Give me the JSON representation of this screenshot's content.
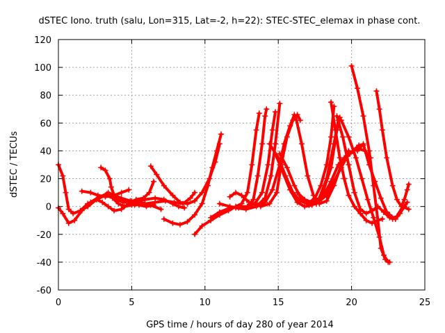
{
  "chart_data": {
    "type": "scatter",
    "title": "dSTEC Iono. truth (salu, Lon=315, Lat=-2, h=22): STEC-STEC_elemax in phase cont.",
    "xlabel": "GPS time / hours of day 280 of year 2014",
    "ylabel": "dSTEC  / TECUs",
    "xlim": [
      0,
      25
    ],
    "ylim": [
      -60,
      120
    ],
    "xticks": [
      0,
      5,
      10,
      15,
      20,
      25
    ],
    "yticks": [
      -60,
      -40,
      -20,
      0,
      20,
      40,
      60,
      80,
      100,
      120
    ],
    "grid": true,
    "marker": "plus",
    "color": "#ff0000",
    "series": [
      {
        "points": [
          [
            0.0,
            30
          ],
          [
            0.3,
            22
          ],
          [
            0.5,
            10
          ],
          [
            0.7,
            -2
          ],
          [
            1.0,
            -5
          ],
          [
            1.5,
            -3
          ],
          [
            2.0,
            0
          ],
          [
            2.6,
            5
          ],
          [
            3.2,
            8
          ],
          [
            3.8,
            6
          ],
          [
            4.4,
            3
          ],
          [
            5.0,
            4
          ],
          [
            5.6,
            3
          ],
          [
            6.3,
            1
          ],
          [
            7.0,
            -2
          ]
        ]
      },
      {
        "points": [
          [
            0.0,
            -1
          ],
          [
            0.3,
            -5
          ],
          [
            0.7,
            -12
          ],
          [
            1.1,
            -10
          ],
          [
            1.6,
            -3
          ],
          [
            2.2,
            3
          ],
          [
            2.8,
            7
          ],
          [
            3.3,
            9
          ],
          [
            3.7,
            6
          ],
          [
            4.1,
            2
          ],
          [
            4.5,
            0
          ],
          [
            5.0,
            1
          ],
          [
            5.5,
            2
          ],
          [
            6.0,
            1
          ]
        ]
      },
      {
        "points": [
          [
            1.5,
            -3
          ],
          [
            2.0,
            2
          ],
          [
            2.6,
            5
          ],
          [
            3.0,
            3
          ],
          [
            3.4,
            0
          ],
          [
            3.8,
            -3
          ],
          [
            4.3,
            -2
          ],
          [
            4.8,
            2
          ],
          [
            5.3,
            5
          ],
          [
            5.8,
            6
          ],
          [
            6.2,
            10
          ],
          [
            6.5,
            18
          ]
        ]
      },
      {
        "points": [
          [
            1.6,
            11
          ],
          [
            2.2,
            10
          ],
          [
            2.7,
            8
          ],
          [
            3.2,
            7
          ],
          [
            3.8,
            8
          ],
          [
            4.3,
            10
          ],
          [
            4.8,
            12
          ]
        ]
      },
      {
        "points": [
          [
            2.9,
            28
          ],
          [
            3.2,
            26
          ],
          [
            3.5,
            20
          ],
          [
            3.6,
            14
          ],
          [
            3.8,
            8
          ],
          [
            4.1,
            5
          ],
          [
            4.6,
            4
          ],
          [
            5.0,
            3
          ],
          [
            5.5,
            1
          ],
          [
            6.0,
            0
          ],
          [
            6.5,
            1
          ]
        ]
      },
      {
        "points": [
          [
            3.4,
            10
          ],
          [
            3.8,
            8
          ],
          [
            4.3,
            6
          ],
          [
            4.9,
            4
          ],
          [
            5.4,
            4
          ],
          [
            5.9,
            5
          ],
          [
            6.6,
            6
          ],
          [
            7.2,
            5
          ],
          [
            7.8,
            2
          ],
          [
            8.2,
            0
          ],
          [
            8.6,
            -1
          ]
        ]
      },
      {
        "points": [
          [
            6.3,
            29
          ],
          [
            6.7,
            23
          ],
          [
            7.2,
            15
          ],
          [
            7.8,
            8
          ],
          [
            8.3,
            3
          ],
          [
            8.8,
            2
          ],
          [
            9.3,
            4
          ],
          [
            9.8,
            10
          ],
          [
            10.3,
            20
          ],
          [
            10.7,
            32
          ],
          [
            11.0,
            45
          ]
        ]
      },
      {
        "points": [
          [
            7.2,
            -9
          ],
          [
            7.8,
            -12
          ],
          [
            8.3,
            -13
          ],
          [
            8.8,
            -11
          ],
          [
            9.3,
            -6
          ],
          [
            9.8,
            2
          ],
          [
            10.2,
            15
          ],
          [
            10.5,
            28
          ],
          [
            10.8,
            40
          ],
          [
            11.1,
            52
          ]
        ]
      },
      {
        "points": [
          [
            5.2,
            1
          ],
          [
            5.9,
            2
          ],
          [
            6.6,
            3
          ],
          [
            7.3,
            4
          ],
          [
            7.9,
            3
          ],
          [
            8.5,
            2
          ],
          [
            9.0,
            6
          ],
          [
            9.3,
            10
          ]
        ]
      },
      {
        "points": [
          [
            9.3,
            -20
          ],
          [
            9.8,
            -14
          ],
          [
            10.4,
            -10
          ],
          [
            11.0,
            -6
          ],
          [
            11.6,
            -3
          ],
          [
            12.1,
            0
          ],
          [
            12.5,
            2
          ],
          [
            12.9,
            10
          ],
          [
            13.2,
            30
          ],
          [
            13.5,
            55
          ],
          [
            13.7,
            67
          ]
        ]
      },
      {
        "points": [
          [
            10.4,
            -8
          ],
          [
            11.0,
            -4
          ],
          [
            11.7,
            -1
          ],
          [
            12.3,
            0
          ],
          [
            12.9,
            0
          ],
          [
            13.3,
            5
          ],
          [
            13.6,
            22
          ],
          [
            13.9,
            45
          ],
          [
            14.1,
            65
          ],
          [
            14.2,
            70
          ]
        ]
      },
      {
        "points": [
          [
            11.0,
            2
          ],
          [
            11.7,
            0
          ],
          [
            12.3,
            -1
          ],
          [
            12.9,
            0
          ],
          [
            13.4,
            2
          ],
          [
            13.9,
            10
          ],
          [
            14.3,
            30
          ],
          [
            14.6,
            55
          ],
          [
            14.8,
            68
          ]
        ]
      },
      {
        "points": [
          [
            11.7,
            7
          ],
          [
            12.1,
            10
          ],
          [
            12.5,
            8
          ],
          [
            13.0,
            3
          ],
          [
            13.6,
            1
          ],
          [
            14.1,
            6
          ],
          [
            14.5,
            22
          ],
          [
            14.8,
            45
          ],
          [
            15.1,
            74
          ]
        ]
      },
      {
        "points": [
          [
            12.1,
            -1
          ],
          [
            12.8,
            -2
          ],
          [
            13.5,
            0
          ],
          [
            14.1,
            3
          ],
          [
            14.6,
            12
          ],
          [
            15.1,
            30
          ],
          [
            15.4,
            45
          ],
          [
            15.8,
            58
          ],
          [
            16.1,
            66
          ]
        ]
      },
      {
        "points": [
          [
            13.8,
            0
          ],
          [
            14.4,
            2
          ],
          [
            14.9,
            10
          ],
          [
            15.2,
            30
          ],
          [
            15.6,
            50
          ],
          [
            16.0,
            62
          ],
          [
            16.3,
            66
          ],
          [
            16.5,
            62
          ]
        ]
      },
      {
        "points": [
          [
            14.4,
            45
          ],
          [
            15.0,
            35
          ],
          [
            15.5,
            22
          ],
          [
            16.0,
            10
          ],
          [
            16.5,
            4
          ],
          [
            17.0,
            2
          ],
          [
            17.5,
            6
          ],
          [
            17.9,
            15
          ],
          [
            18.3,
            30
          ],
          [
            18.6,
            50
          ],
          [
            18.8,
            72
          ]
        ]
      },
      {
        "points": [
          [
            14.8,
            38
          ],
          [
            15.3,
            25
          ],
          [
            15.8,
            12
          ],
          [
            16.3,
            3
          ],
          [
            16.8,
            0
          ],
          [
            17.3,
            1
          ],
          [
            17.8,
            6
          ],
          [
            18.3,
            20
          ],
          [
            18.8,
            45
          ],
          [
            19.1,
            62
          ]
        ]
      },
      {
        "points": [
          [
            15.1,
            38
          ],
          [
            15.6,
            28
          ],
          [
            16.1,
            15
          ],
          [
            16.6,
            5
          ],
          [
            17.1,
            1
          ],
          [
            17.6,
            2
          ],
          [
            18.1,
            12
          ],
          [
            18.6,
            28
          ],
          [
            19.0,
            55
          ],
          [
            19.2,
            64
          ]
        ]
      },
      {
        "points": [
          [
            16.2,
            64
          ],
          [
            16.6,
            45
          ],
          [
            17.0,
            22
          ],
          [
            17.4,
            8
          ],
          [
            17.8,
            2
          ],
          [
            18.3,
            4
          ],
          [
            18.8,
            15
          ],
          [
            19.3,
            30
          ],
          [
            19.8,
            40
          ]
        ]
      },
      {
        "points": [
          [
            16.3,
            10
          ],
          [
            16.8,
            5
          ],
          [
            17.3,
            3
          ],
          [
            17.8,
            4
          ],
          [
            18.3,
            8
          ],
          [
            18.8,
            18
          ],
          [
            19.3,
            28
          ],
          [
            19.7,
            36
          ],
          [
            20.1,
            40
          ],
          [
            20.5,
            44
          ],
          [
            20.8,
            44
          ]
        ]
      },
      {
        "points": [
          [
            17.1,
            1
          ],
          [
            17.6,
            3
          ],
          [
            18.1,
            8
          ],
          [
            18.6,
            18
          ],
          [
            19.1,
            30
          ],
          [
            19.5,
            35
          ],
          [
            19.9,
            38
          ],
          [
            20.4,
            42
          ],
          [
            20.9,
            40
          ],
          [
            21.3,
            35
          ]
        ]
      },
      {
        "points": [
          [
            18.6,
            75
          ],
          [
            18.9,
            55
          ],
          [
            19.2,
            35
          ],
          [
            19.5,
            20
          ],
          [
            19.8,
            8
          ],
          [
            20.2,
            0
          ],
          [
            20.6,
            -5
          ],
          [
            21.0,
            -10
          ],
          [
            21.4,
            -12
          ],
          [
            21.8,
            -10
          ],
          [
            22.1,
            -9
          ]
        ]
      },
      {
        "points": [
          [
            19.0,
            65
          ],
          [
            19.4,
            50
          ],
          [
            19.8,
            30
          ],
          [
            20.2,
            10
          ],
          [
            20.6,
            -2
          ],
          [
            21.0,
            -5
          ],
          [
            21.4,
            -3
          ],
          [
            21.8,
            0
          ],
          [
            22.2,
            -4
          ],
          [
            22.6,
            -8
          ],
          [
            23.0,
            -9
          ]
        ]
      },
      {
        "points": [
          [
            20.0,
            101
          ],
          [
            20.4,
            85
          ],
          [
            20.8,
            65
          ],
          [
            21.2,
            40
          ],
          [
            21.5,
            15
          ],
          [
            21.8,
            -10
          ],
          [
            22.0,
            -30
          ],
          [
            22.3,
            -38
          ],
          [
            22.6,
            -40
          ]
        ]
      },
      {
        "points": [
          [
            19.3,
            62
          ],
          [
            19.8,
            50
          ],
          [
            20.3,
            35
          ],
          [
            20.7,
            20
          ],
          [
            21.1,
            5
          ],
          [
            21.5,
            -8
          ],
          [
            21.9,
            -22
          ],
          [
            22.2,
            -35
          ],
          [
            22.5,
            -40
          ]
        ]
      },
      {
        "points": [
          [
            20.4,
            40
          ],
          [
            20.8,
            45
          ],
          [
            21.2,
            30
          ],
          [
            21.6,
            18
          ],
          [
            22.0,
            6
          ],
          [
            22.4,
            -4
          ],
          [
            22.8,
            -9
          ],
          [
            23.1,
            -7
          ],
          [
            23.5,
            0
          ],
          [
            23.9,
            -2
          ]
        ]
      },
      {
        "points": [
          [
            21.7,
            83
          ],
          [
            21.9,
            70
          ],
          [
            22.1,
            55
          ],
          [
            22.4,
            35
          ],
          [
            22.8,
            15
          ],
          [
            23.1,
            5
          ],
          [
            23.4,
            0
          ],
          [
            23.6,
            5
          ],
          [
            23.8,
            12
          ],
          [
            23.9,
            16
          ]
        ]
      },
      {
        "points": [
          [
            22.2,
            -4
          ],
          [
            22.6,
            -6
          ],
          [
            23.0,
            -9
          ],
          [
            23.3,
            -5
          ],
          [
            23.6,
            0
          ],
          [
            23.8,
            3
          ]
        ]
      }
    ]
  }
}
